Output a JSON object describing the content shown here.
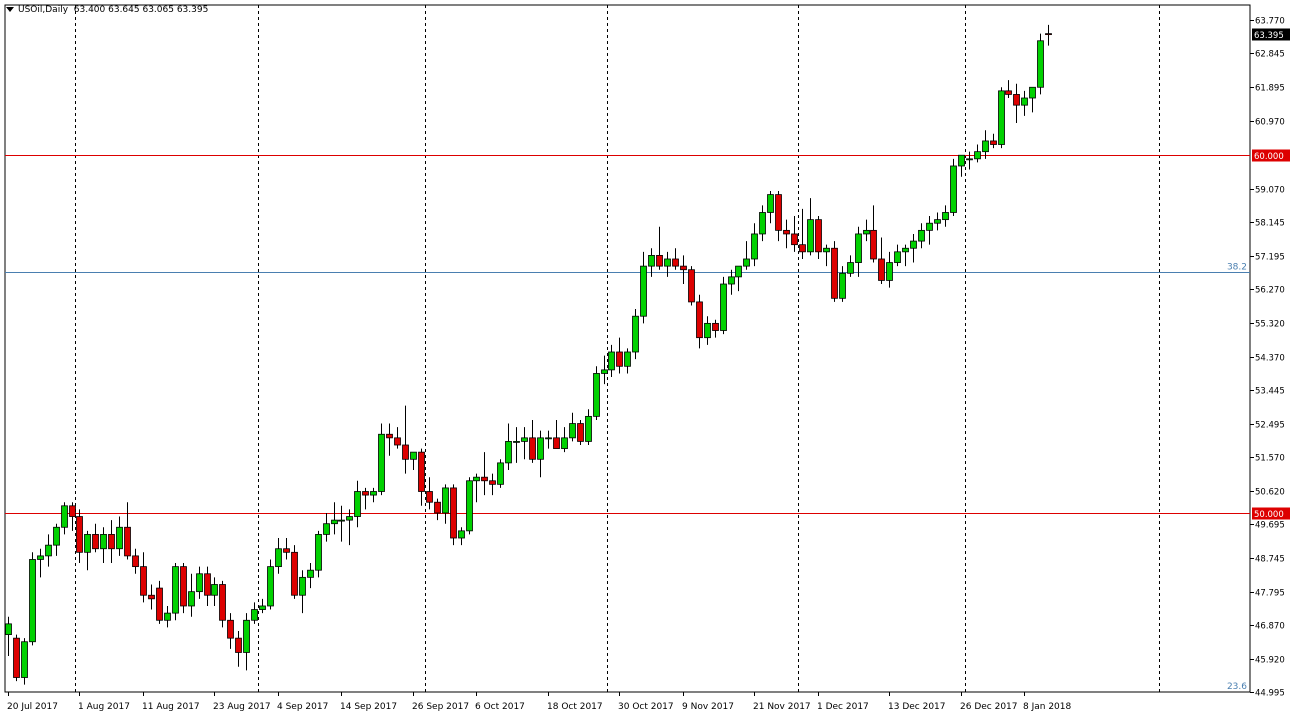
{
  "header": {
    "symbol": "USOil,Daily",
    "ohlc": "63.400 63.645 63.065 63.395"
  },
  "colors": {
    "bull": "#00d100",
    "bear": "#dd0000",
    "sr_line": "#dd0000",
    "fib_line": "#4a7fb0",
    "grid": "#000000",
    "price_tag_bg": "#000000",
    "sr_tag_bg": "#dd0000"
  },
  "chart_data": {
    "type": "candlestick",
    "title": "",
    "xlabel": "",
    "ylabel": "",
    "ylim": [
      44.995,
      64.2
    ],
    "grid": "vertical-dashed",
    "y_ticks": [
      "63.770",
      "62.845",
      "61.895",
      "60.970",
      "59.070",
      "58.145",
      "57.195",
      "56.270",
      "55.320",
      "54.370",
      "53.445",
      "52.495",
      "51.570",
      "50.620",
      "49.695",
      "48.745",
      "47.795",
      "46.870",
      "45.920",
      "44.995"
    ],
    "x_labels": [
      {
        "i": 0,
        "label": "20 Jul 2017"
      },
      {
        "i": 9,
        "label": "1 Aug 2017"
      },
      {
        "i": 17,
        "label": "11 Aug 2017"
      },
      {
        "i": 26,
        "label": "23 Aug 2017"
      },
      {
        "i": 34,
        "label": "4 Sep 2017"
      },
      {
        "i": 42,
        "label": "14 Sep 2017"
      },
      {
        "i": 51,
        "label": "26 Sep 2017"
      },
      {
        "i": 59,
        "label": "6 Oct 2017"
      },
      {
        "i": 68,
        "label": "18 Oct 2017"
      },
      {
        "i": 77,
        "label": "30 Oct 2017"
      },
      {
        "i": 85,
        "label": "9 Nov 2017"
      },
      {
        "i": 94,
        "label": "21 Nov 2017"
      },
      {
        "i": 102,
        "label": "1 Dec 2017"
      },
      {
        "i": 111,
        "label": "13 Dec 2017"
      },
      {
        "i": 120,
        "label": "26 Dec 2017"
      },
      {
        "i": 128,
        "label": "8 Jan 2018"
      }
    ],
    "period_separators": [
      8.5,
      31.5,
      52.5,
      75.5,
      99.5,
      120.5,
      145
    ],
    "horizontal_levels": [
      {
        "value": 60.0,
        "label": "60.000",
        "kind": "sr"
      },
      {
        "value": 50.0,
        "label": "50.000",
        "kind": "sr"
      },
      {
        "value": 56.75,
        "label": "38.2",
        "kind": "fib"
      }
    ],
    "bottom_fib_label": "23.6",
    "current_price": {
      "value": 63.395,
      "label": "63.395"
    },
    "candles": [
      [
        46.6,
        47.1,
        46.0,
        46.9
      ],
      [
        46.5,
        46.6,
        45.3,
        45.4
      ],
      [
        45.4,
        46.5,
        45.2,
        46.4
      ],
      [
        46.4,
        48.9,
        46.3,
        48.7
      ],
      [
        48.7,
        49.0,
        48.2,
        48.8
      ],
      [
        48.8,
        49.4,
        48.5,
        49.1
      ],
      [
        49.1,
        49.7,
        48.8,
        49.6
      ],
      [
        49.6,
        50.3,
        49.4,
        50.2
      ],
      [
        50.2,
        50.3,
        49.5,
        49.9
      ],
      [
        49.9,
        50.1,
        48.6,
        48.9
      ],
      [
        48.9,
        49.5,
        48.4,
        49.4
      ],
      [
        49.4,
        49.7,
        48.9,
        49.0
      ],
      [
        49.0,
        49.6,
        48.6,
        49.4
      ],
      [
        49.4,
        49.8,
        48.6,
        49.0
      ],
      [
        49.0,
        49.9,
        48.8,
        49.6
      ],
      [
        49.6,
        50.3,
        48.7,
        48.8
      ],
      [
        48.8,
        49.0,
        48.3,
        48.5
      ],
      [
        48.5,
        48.9,
        47.5,
        47.7
      ],
      [
        47.7,
        48.0,
        47.3,
        47.6
      ],
      [
        47.9,
        48.1,
        46.9,
        47.0
      ],
      [
        47.0,
        47.4,
        46.8,
        47.2
      ],
      [
        47.2,
        48.6,
        47.0,
        48.5
      ],
      [
        48.5,
        48.6,
        47.2,
        47.4
      ],
      [
        47.4,
        48.3,
        47.1,
        47.8
      ],
      [
        47.8,
        48.5,
        47.6,
        48.3
      ],
      [
        48.3,
        48.5,
        47.4,
        47.7
      ],
      [
        47.7,
        48.2,
        47.4,
        48.0
      ],
      [
        48.0,
        48.1,
        46.8,
        47.0
      ],
      [
        47.0,
        47.2,
        46.2,
        46.5
      ],
      [
        46.5,
        46.7,
        45.7,
        46.1
      ],
      [
        46.1,
        47.2,
        45.6,
        47.0
      ],
      [
        47.0,
        47.5,
        46.9,
        47.3
      ],
      [
        47.3,
        47.6,
        47.2,
        47.4
      ],
      [
        47.4,
        48.7,
        47.3,
        48.5
      ],
      [
        48.5,
        49.3,
        48.3,
        49.0
      ],
      [
        49.0,
        49.3,
        48.7,
        48.9
      ],
      [
        48.9,
        49.1,
        47.6,
        47.7
      ],
      [
        47.7,
        48.4,
        47.2,
        48.2
      ],
      [
        48.2,
        48.6,
        47.9,
        48.4
      ],
      [
        48.4,
        49.5,
        48.2,
        49.4
      ],
      [
        49.4,
        50.0,
        49.2,
        49.7
      ],
      [
        49.7,
        50.3,
        49.4,
        49.8
      ],
      [
        49.8,
        50.2,
        49.2,
        49.8
      ],
      [
        49.8,
        50.1,
        49.1,
        49.9
      ],
      [
        49.9,
        50.9,
        49.6,
        50.6
      ],
      [
        50.6,
        50.7,
        50.1,
        50.5
      ],
      [
        50.5,
        50.7,
        50.3,
        50.6
      ],
      [
        50.6,
        52.5,
        50.5,
        52.2
      ],
      [
        52.2,
        52.5,
        51.6,
        52.1
      ],
      [
        52.1,
        52.4,
        51.8,
        51.9
      ],
      [
        51.9,
        53.0,
        51.1,
        51.5
      ],
      [
        51.5,
        51.7,
        51.2,
        51.7
      ],
      [
        51.7,
        51.8,
        50.2,
        50.6
      ],
      [
        50.6,
        51.0,
        50.1,
        50.3
      ],
      [
        50.3,
        50.4,
        49.8,
        50.0
      ],
      [
        50.0,
        50.8,
        49.7,
        50.7
      ],
      [
        50.7,
        50.8,
        49.1,
        49.3
      ],
      [
        49.3,
        49.6,
        49.1,
        49.5
      ],
      [
        49.5,
        51.0,
        49.4,
        50.9
      ],
      [
        50.9,
        51.1,
        50.3,
        51.0
      ],
      [
        51.0,
        51.7,
        50.5,
        50.9
      ],
      [
        50.9,
        51.1,
        50.5,
        50.8
      ],
      [
        50.8,
        51.5,
        50.7,
        51.4
      ],
      [
        51.4,
        52.5,
        51.2,
        52.0
      ],
      [
        52.0,
        52.4,
        51.4,
        52.0
      ],
      [
        52.0,
        52.4,
        51.5,
        52.1
      ],
      [
        52.1,
        52.6,
        51.4,
        51.5
      ],
      [
        51.5,
        52.3,
        51.0,
        52.1
      ],
      [
        52.1,
        52.3,
        51.8,
        52.1
      ],
      [
        52.1,
        52.6,
        51.9,
        51.8
      ],
      [
        51.8,
        52.4,
        51.7,
        52.1
      ],
      [
        52.1,
        52.8,
        52.0,
        52.5
      ],
      [
        52.5,
        52.6,
        51.9,
        52.0
      ],
      [
        52.0,
        52.9,
        51.9,
        52.7
      ],
      [
        52.7,
        54.1,
        52.6,
        53.9
      ],
      [
        53.9,
        54.4,
        53.6,
        54.0
      ],
      [
        54.0,
        54.7,
        53.8,
        54.5
      ],
      [
        54.5,
        54.9,
        53.9,
        54.1
      ],
      [
        54.1,
        54.6,
        53.9,
        54.5
      ],
      [
        54.5,
        55.7,
        54.3,
        55.5
      ],
      [
        55.5,
        57.3,
        55.3,
        56.9
      ],
      [
        56.9,
        57.4,
        56.6,
        57.2
      ],
      [
        57.2,
        58.0,
        56.8,
        56.9
      ],
      [
        56.9,
        57.3,
        56.6,
        57.1
      ],
      [
        57.1,
        57.4,
        56.8,
        56.9
      ],
      [
        56.9,
        57.2,
        56.4,
        56.8
      ],
      [
        56.8,
        56.9,
        55.8,
        55.9
      ],
      [
        55.9,
        56.1,
        54.6,
        54.9
      ],
      [
        54.9,
        55.5,
        54.7,
        55.3
      ],
      [
        55.3,
        55.4,
        54.9,
        55.1
      ],
      [
        55.1,
        56.6,
        55.0,
        56.4
      ],
      [
        56.4,
        56.8,
        56.1,
        56.6
      ],
      [
        56.6,
        56.9,
        56.2,
        56.9
      ],
      [
        56.9,
        57.6,
        56.8,
        57.1
      ],
      [
        57.1,
        58.1,
        56.9,
        57.8
      ],
      [
        57.8,
        58.6,
        57.6,
        58.4
      ],
      [
        58.4,
        59.0,
        58.1,
        58.9
      ],
      [
        58.9,
        59.0,
        57.6,
        57.9
      ],
      [
        57.9,
        58.2,
        57.4,
        57.8
      ],
      [
        57.8,
        58.3,
        57.3,
        57.5
      ],
      [
        57.5,
        58.5,
        57.1,
        57.3
      ],
      [
        57.3,
        58.8,
        57.2,
        58.2
      ],
      [
        58.2,
        58.3,
        57.1,
        57.3
      ],
      [
        57.3,
        57.5,
        56.9,
        57.4
      ],
      [
        57.4,
        57.6,
        55.9,
        56.0
      ],
      [
        56.0,
        56.9,
        55.9,
        56.7
      ],
      [
        56.7,
        57.2,
        56.6,
        57.0
      ],
      [
        57.0,
        58.0,
        56.6,
        57.8
      ],
      [
        57.8,
        58.2,
        57.6,
        57.9
      ],
      [
        57.9,
        58.6,
        57.0,
        57.1
      ],
      [
        57.1,
        57.7,
        56.4,
        56.5
      ],
      [
        56.5,
        57.3,
        56.3,
        57.0
      ],
      [
        57.0,
        57.5,
        56.9,
        57.3
      ],
      [
        57.3,
        57.5,
        56.9,
        57.4
      ],
      [
        57.4,
        57.8,
        57.0,
        57.6
      ],
      [
        57.6,
        58.1,
        57.4,
        57.9
      ],
      [
        57.9,
        58.3,
        57.5,
        58.1
      ],
      [
        58.1,
        58.4,
        57.9,
        58.2
      ],
      [
        58.2,
        58.6,
        58.0,
        58.4
      ],
      [
        58.4,
        59.9,
        58.3,
        59.7
      ],
      [
        59.7,
        60.0,
        59.4,
        60.0
      ],
      [
        59.9,
        60.1,
        59.6,
        59.9
      ],
      [
        59.9,
        60.3,
        59.8,
        60.1
      ],
      [
        60.1,
        60.7,
        59.9,
        60.4
      ],
      [
        60.4,
        60.6,
        60.2,
        60.3
      ],
      [
        60.3,
        61.9,
        60.2,
        61.8
      ],
      [
        61.8,
        62.1,
        61.6,
        61.7
      ],
      [
        61.7,
        62.0,
        60.9,
        61.4
      ],
      [
        61.4,
        61.8,
        61.1,
        61.6
      ],
      [
        61.6,
        61.9,
        61.2,
        61.9
      ],
      [
        61.9,
        63.4,
        61.7,
        63.2
      ],
      [
        63.4,
        63.645,
        63.065,
        63.395
      ]
    ]
  }
}
